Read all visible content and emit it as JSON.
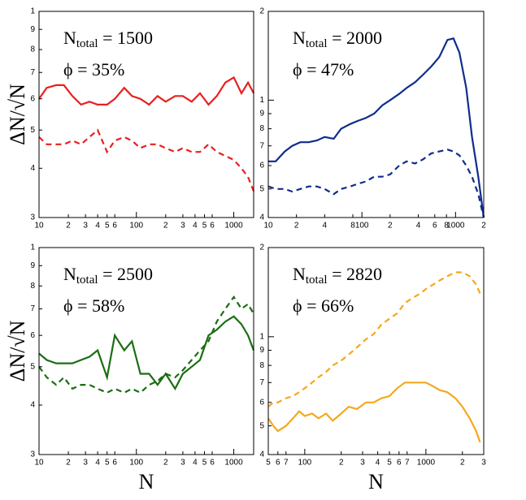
{
  "chart_data": [
    {
      "type": "line",
      "xlog": true,
      "ylog": true,
      "annotation": {
        "base": "N",
        "subscript": "total",
        "text": " = 1500"
      },
      "annotation2": "ϕ = 35%",
      "ylabel": "ΔN/√N",
      "xlim": [
        10,
        1600
      ],
      "ylim": [
        0.3,
        1
      ],
      "xticks": [
        10,
        {
          "value": 20,
          "label": "2"
        },
        {
          "value": 30,
          "label": "3"
        },
        {
          "value": 40,
          "label": "4"
        },
        {
          "value": 50,
          "label": "5"
        },
        {
          "value": 60,
          "label": "6"
        },
        100,
        {
          "value": 200,
          "label": "2"
        },
        {
          "value": 300,
          "label": "3"
        },
        {
          "value": 400,
          "label": "4"
        },
        {
          "value": 500,
          "label": "5"
        },
        {
          "value": 600,
          "label": "6"
        },
        1000
      ],
      "yticks": [
        {
          "value": 0.3,
          "label": "3"
        },
        {
          "value": 0.4,
          "label": "4"
        },
        {
          "value": 0.5,
          "label": "5"
        },
        {
          "value": 0.6,
          "label": "6"
        },
        {
          "value": 0.7,
          "label": "7"
        },
        {
          "value": 0.8,
          "label": "8"
        },
        {
          "value": 0.9,
          "label": "9"
        },
        1
      ],
      "x": [
        10,
        12,
        15,
        18,
        22,
        27,
        33,
        40,
        50,
        60,
        75,
        90,
        110,
        135,
        165,
        200,
        250,
        300,
        370,
        450,
        550,
        670,
        820,
        1000,
        1200,
        1400,
        1600
      ],
      "series": [
        {
          "color": "#e8201f",
          "linestyle": "solid",
          "values": [
            0.6,
            0.64,
            0.65,
            0.65,
            0.61,
            0.58,
            0.59,
            0.58,
            0.58,
            0.6,
            0.64,
            0.61,
            0.6,
            0.58,
            0.61,
            0.59,
            0.61,
            0.61,
            0.59,
            0.62,
            0.58,
            0.61,
            0.66,
            0.68,
            0.62,
            0.66,
            0.62
          ]
        },
        {
          "color": "#e8201f",
          "linestyle": "dashed",
          "values": [
            0.48,
            0.46,
            0.46,
            0.46,
            0.47,
            0.46,
            0.48,
            0.5,
            0.44,
            0.47,
            0.48,
            0.47,
            0.45,
            0.46,
            0.46,
            0.45,
            0.44,
            0.45,
            0.44,
            0.44,
            0.46,
            0.44,
            0.43,
            0.42,
            0.4,
            0.38,
            0.35
          ]
        }
      ]
    },
    {
      "type": "line",
      "xlog": true,
      "ylog": true,
      "annotation": {
        "base": "N",
        "subscript": "total",
        "text": " = 2000"
      },
      "annotation2": "ϕ = 47%",
      "xlim": [
        10,
        2000
      ],
      "ylim": [
        0.4,
        2
      ],
      "xticks": [
        10,
        {
          "value": 20,
          "label": "2"
        },
        {
          "value": 40,
          "label": "4"
        },
        {
          "value": 80,
          "label": "8"
        },
        100,
        {
          "value": 200,
          "label": "2"
        },
        {
          "value": 400,
          "label": "4"
        },
        {
          "value": 600,
          "label": "6"
        },
        {
          "value": 800,
          "label": "8"
        },
        1000,
        {
          "value": 2000,
          "label": "2"
        }
      ],
      "yticks": [
        {
          "value": 0.4,
          "label": "4"
        },
        {
          "value": 0.5,
          "label": "5"
        },
        {
          "value": 0.6,
          "label": "6"
        },
        {
          "value": 0.7,
          "label": "7"
        },
        {
          "value": 0.8,
          "label": "8"
        },
        {
          "value": 0.9,
          "label": "9"
        },
        1,
        2
      ],
      "x": [
        10,
        12,
        15,
        18,
        22,
        27,
        33,
        40,
        50,
        60,
        75,
        90,
        110,
        135,
        165,
        200,
        250,
        300,
        370,
        450,
        550,
        670,
        820,
        950,
        1100,
        1300,
        1500,
        1750,
        2000
      ],
      "series": [
        {
          "color": "#0f2d8c",
          "linestyle": "solid",
          "values": [
            0.62,
            0.62,
            0.67,
            0.7,
            0.72,
            0.72,
            0.73,
            0.75,
            0.74,
            0.8,
            0.83,
            0.85,
            0.87,
            0.9,
            0.96,
            1.0,
            1.05,
            1.1,
            1.15,
            1.22,
            1.3,
            1.4,
            1.6,
            1.62,
            1.45,
            1.1,
            0.75,
            0.55,
            0.4
          ]
        },
        {
          "color": "#0f2d8c",
          "linestyle": "dashed",
          "values": [
            0.51,
            0.5,
            0.5,
            0.49,
            0.5,
            0.51,
            0.51,
            0.5,
            0.48,
            0.5,
            0.51,
            0.52,
            0.53,
            0.55,
            0.55,
            0.56,
            0.6,
            0.62,
            0.61,
            0.63,
            0.66,
            0.67,
            0.68,
            0.67,
            0.65,
            0.6,
            0.55,
            0.48,
            0.4
          ]
        }
      ]
    },
    {
      "type": "line",
      "xlog": true,
      "ylog": true,
      "annotation": {
        "base": "N",
        "subscript": "total",
        "text": " = 2500"
      },
      "annotation2": "ϕ = 58%",
      "ylabel": "ΔN/√N",
      "xlabel": "N",
      "xlim": [
        10,
        1600
      ],
      "ylim": [
        0.3,
        1
      ],
      "xticks": [
        10,
        {
          "value": 20,
          "label": "2"
        },
        {
          "value": 30,
          "label": "3"
        },
        {
          "value": 40,
          "label": "4"
        },
        {
          "value": 50,
          "label": "5"
        },
        {
          "value": 60,
          "label": "6"
        },
        100,
        {
          "value": 200,
          "label": "2"
        },
        {
          "value": 300,
          "label": "3"
        },
        {
          "value": 400,
          "label": "4"
        },
        {
          "value": 500,
          "label": "5"
        },
        {
          "value": 600,
          "label": "6"
        },
        1000
      ],
      "yticks": [
        {
          "value": 0.3,
          "label": "3"
        },
        {
          "value": 0.4,
          "label": "4"
        },
        {
          "value": 0.5,
          "label": "5"
        },
        {
          "value": 0.6,
          "label": "6"
        },
        {
          "value": 0.7,
          "label": "7"
        },
        {
          "value": 0.8,
          "label": "8"
        },
        {
          "value": 0.9,
          "label": "9"
        },
        1
      ],
      "x": [
        10,
        12,
        15,
        18,
        22,
        27,
        33,
        40,
        50,
        60,
        75,
        90,
        110,
        135,
        165,
        200,
        250,
        300,
        370,
        450,
        550,
        670,
        820,
        1000,
        1200,
        1400,
        1600
      ],
      "series": [
        {
          "color": "#1a6e12",
          "linestyle": "solid",
          "values": [
            0.54,
            0.52,
            0.51,
            0.51,
            0.51,
            0.52,
            0.53,
            0.55,
            0.47,
            0.6,
            0.55,
            0.58,
            0.48,
            0.48,
            0.45,
            0.48,
            0.44,
            0.48,
            0.5,
            0.52,
            0.6,
            0.62,
            0.65,
            0.67,
            0.64,
            0.6,
            0.55
          ]
        },
        {
          "color": "#1a6e12",
          "linestyle": "dashed",
          "values": [
            0.5,
            0.47,
            0.45,
            0.47,
            0.44,
            0.45,
            0.45,
            0.44,
            0.43,
            0.44,
            0.43,
            0.44,
            0.43,
            0.45,
            0.46,
            0.48,
            0.47,
            0.49,
            0.52,
            0.55,
            0.58,
            0.65,
            0.7,
            0.75,
            0.7,
            0.72,
            0.68
          ]
        }
      ]
    },
    {
      "type": "line",
      "xlog": true,
      "ylog": true,
      "annotation": {
        "base": "N",
        "subscript": "total",
        "text": " = 2820"
      },
      "annotation2": "ϕ = 66%",
      "xlabel": "N",
      "xlim": [
        50,
        3000
      ],
      "ylim": [
        0.4,
        2
      ],
      "xticks": [
        {
          "value": 50,
          "label": "5"
        },
        {
          "value": 60,
          "label": "6"
        },
        {
          "value": 70,
          "label": "7"
        },
        100,
        {
          "value": 200,
          "label": "2"
        },
        {
          "value": 300,
          "label": "3"
        },
        {
          "value": 400,
          "label": "4"
        },
        {
          "value": 500,
          "label": "5"
        },
        {
          "value": 600,
          "label": "6"
        },
        {
          "value": 700,
          "label": "7"
        },
        1000,
        {
          "value": 2000,
          "label": "2"
        },
        {
          "value": 3000,
          "label": "3"
        }
      ],
      "yticks": [
        {
          "value": 0.4,
          "label": "4"
        },
        {
          "value": 0.5,
          "label": "5"
        },
        {
          "value": 0.6,
          "label": "6"
        },
        {
          "value": 0.7,
          "label": "7"
        },
        {
          "value": 0.8,
          "label": "8"
        },
        {
          "value": 0.9,
          "label": "9"
        },
        1,
        2
      ],
      "x": [
        50,
        55,
        60,
        70,
        80,
        90,
        100,
        115,
        130,
        150,
        170,
        200,
        230,
        270,
        320,
        370,
        430,
        500,
        580,
        670,
        770,
        900,
        1000,
        1150,
        1300,
        1500,
        1750,
        2000,
        2300,
        2600,
        2800
      ],
      "series": [
        {
          "color": "#f5a81c",
          "linestyle": "dashed",
          "values": [
            0.58,
            0.6,
            0.6,
            0.62,
            0.63,
            0.65,
            0.67,
            0.7,
            0.73,
            0.76,
            0.8,
            0.83,
            0.87,
            0.92,
            0.98,
            1.02,
            1.1,
            1.15,
            1.2,
            1.3,
            1.35,
            1.4,
            1.45,
            1.5,
            1.55,
            1.6,
            1.65,
            1.65,
            1.6,
            1.5,
            1.4
          ]
        },
        {
          "color": "#f5a81c",
          "linestyle": "solid",
          "values": [
            0.53,
            0.5,
            0.48,
            0.5,
            0.53,
            0.56,
            0.54,
            0.55,
            0.53,
            0.55,
            0.52,
            0.55,
            0.58,
            0.57,
            0.6,
            0.6,
            0.62,
            0.63,
            0.67,
            0.7,
            0.7,
            0.7,
            0.7,
            0.68,
            0.66,
            0.65,
            0.62,
            0.58,
            0.53,
            0.48,
            0.44
          ]
        }
      ]
    }
  ]
}
